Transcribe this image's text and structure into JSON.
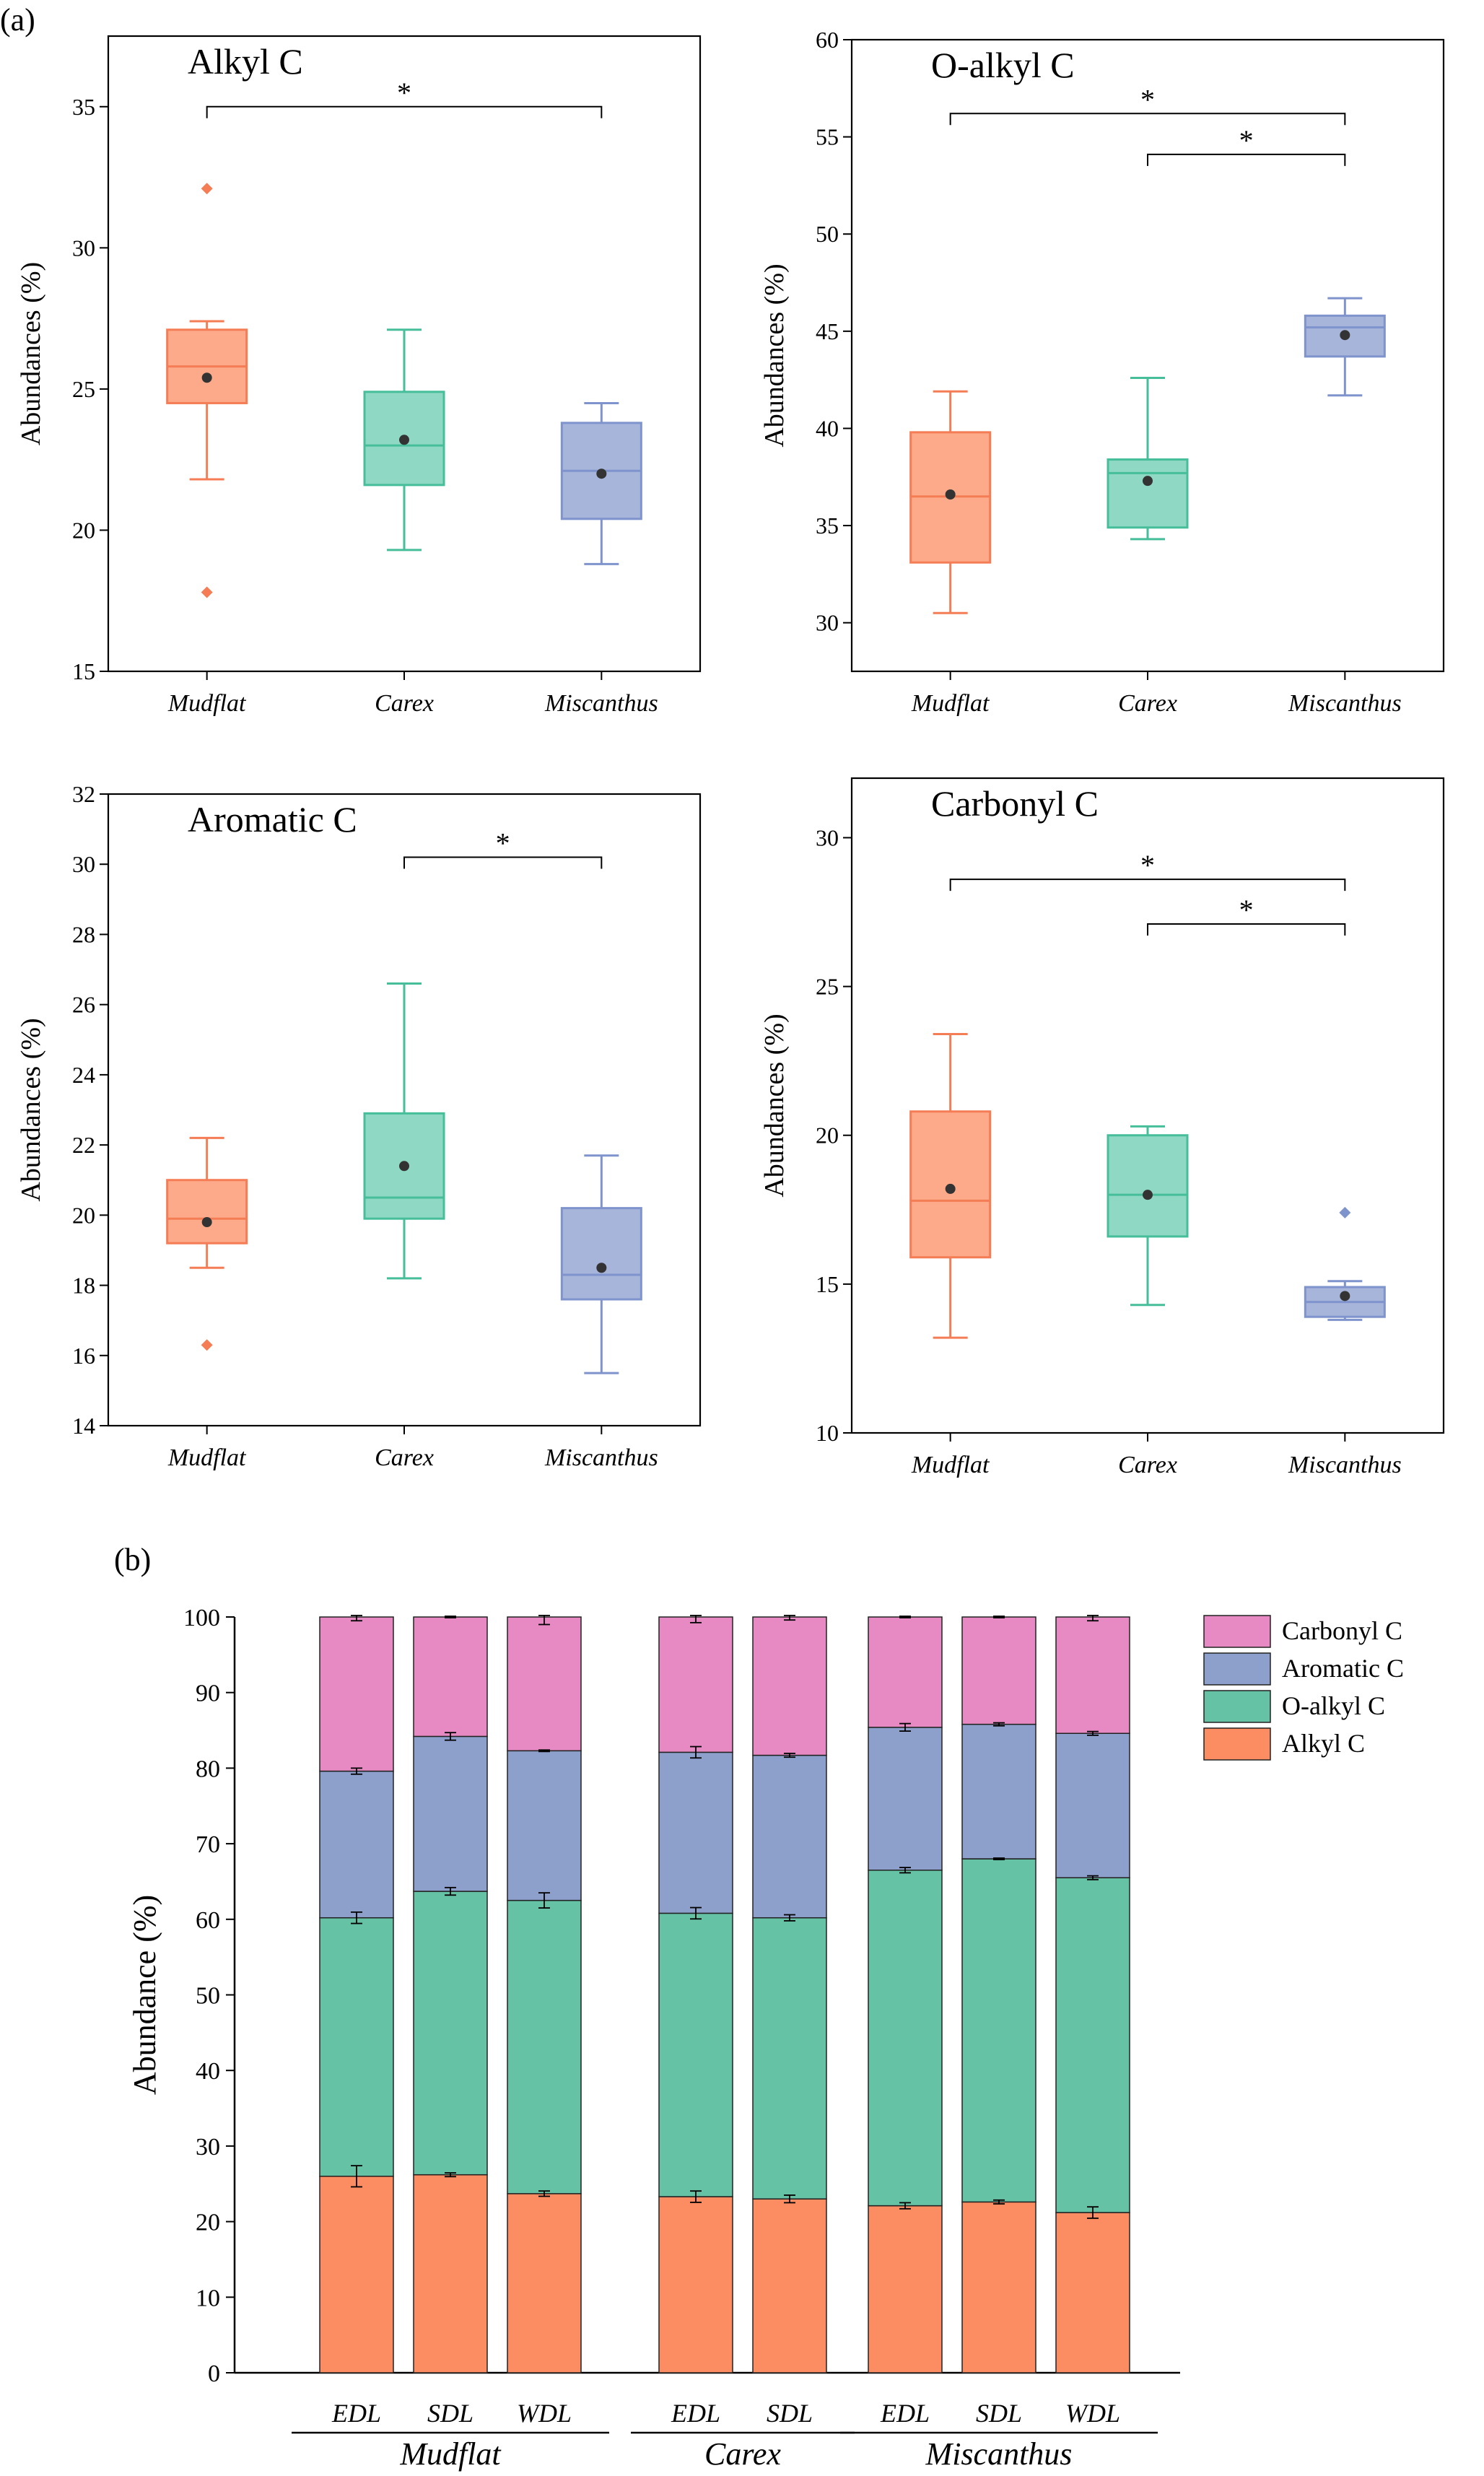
{
  "panel_labels": [
    "(a)",
    "(b)"
  ],
  "colors": {
    "Mudflat": {
      "fill": "#fcaa8a",
      "stroke": "#f47d55"
    },
    "Carex": {
      "fill": "#8fd8c3",
      "stroke": "#46be99"
    },
    "Miscanthus": {
      "fill": "#a7b5db",
      "stroke": "#7f93cc"
    },
    "mean_marker": "#333333",
    "Alkyl C": "#fc8d62",
    "O-alkyl C": "#66c2a5",
    "Aromatic C": "#8da0cb",
    "Carbonyl C": "#e78ac3"
  },
  "chart_data": [
    {
      "type": "box",
      "panel": "(a)",
      "title": "Alkyl C",
      "ylabel": "Abundances (%)",
      "ylim": [
        15,
        37.5
      ],
      "yticks": [
        15,
        20,
        25,
        30,
        35
      ],
      "categories": [
        "Mudflat",
        "Carex",
        "Miscanthus"
      ],
      "boxes": [
        {
          "category": "Mudflat",
          "whisker_low": 21.8,
          "q1": 24.5,
          "median": 25.8,
          "q3": 27.1,
          "whisker_high": 27.4,
          "mean": 25.4,
          "outliers": [
            32.1,
            17.8
          ]
        },
        {
          "category": "Carex",
          "whisker_low": 19.3,
          "q1": 21.6,
          "median": 23.0,
          "q3": 24.9,
          "whisker_high": 27.1,
          "mean": 23.2,
          "outliers": []
        },
        {
          "category": "Miscanthus",
          "whisker_low": 18.8,
          "q1": 20.4,
          "median": 22.1,
          "q3": 23.8,
          "whisker_high": 24.5,
          "mean": 22.0,
          "outliers": []
        }
      ],
      "significance": [
        {
          "from": "Mudflat",
          "to": "Miscanthus",
          "level": 35.0,
          "label": "*"
        }
      ]
    },
    {
      "type": "box",
      "panel": "(a)",
      "title": "O-alkyl C",
      "ylabel": "Abundances (%)",
      "ylim": [
        27.5,
        60
      ],
      "yticks": [
        30,
        35,
        40,
        45,
        50,
        55,
        60
      ],
      "categories": [
        "Mudflat",
        "Carex",
        "Miscanthus"
      ],
      "boxes": [
        {
          "category": "Mudflat",
          "whisker_low": 30.5,
          "q1": 33.1,
          "median": 36.5,
          "q3": 39.8,
          "whisker_high": 41.9,
          "mean": 36.6,
          "outliers": []
        },
        {
          "category": "Carex",
          "whisker_low": 34.3,
          "q1": 34.9,
          "median": 37.7,
          "q3": 38.4,
          "whisker_high": 42.6,
          "mean": 37.3,
          "outliers": []
        },
        {
          "category": "Miscanthus",
          "whisker_low": 41.7,
          "q1": 43.7,
          "median": 45.2,
          "q3": 45.8,
          "whisker_high": 46.7,
          "mean": 44.8,
          "outliers": []
        }
      ],
      "significance": [
        {
          "from": "Mudflat",
          "to": "Miscanthus",
          "level": 56.2,
          "label": "*"
        },
        {
          "from": "Carex",
          "to": "Miscanthus",
          "level": 54.1,
          "label": "*"
        }
      ]
    },
    {
      "type": "box",
      "panel": "(a)",
      "title": "Aromatic C",
      "ylabel": "Abundances (%)",
      "ylim": [
        14,
        32
      ],
      "yticks": [
        14,
        16,
        18,
        20,
        22,
        24,
        26,
        28,
        30,
        32
      ],
      "categories": [
        "Mudflat",
        "Carex",
        "Miscanthus"
      ],
      "boxes": [
        {
          "category": "Mudflat",
          "whisker_low": 18.5,
          "q1": 19.2,
          "median": 19.9,
          "q3": 21.0,
          "whisker_high": 22.2,
          "mean": 19.8,
          "outliers": [
            16.3
          ]
        },
        {
          "category": "Carex",
          "whisker_low": 18.2,
          "q1": 19.9,
          "median": 20.5,
          "q3": 22.9,
          "whisker_high": 26.6,
          "mean": 21.4,
          "outliers": []
        },
        {
          "category": "Miscanthus",
          "whisker_low": 15.5,
          "q1": 17.6,
          "median": 18.3,
          "q3": 20.2,
          "whisker_high": 21.7,
          "mean": 18.5,
          "outliers": []
        }
      ],
      "significance": [
        {
          "from": "Carex",
          "to": "Miscanthus",
          "level": 30.2,
          "label": "*"
        }
      ]
    },
    {
      "type": "box",
      "panel": "(a)",
      "title": "Carbonyl C",
      "ylabel": "Abundances (%)",
      "ylim": [
        10,
        32
      ],
      "yticks": [
        10,
        15,
        20,
        25,
        30
      ],
      "categories": [
        "Mudflat",
        "Carex",
        "Miscanthus"
      ],
      "boxes": [
        {
          "category": "Mudflat",
          "whisker_low": 13.2,
          "q1": 15.9,
          "median": 17.8,
          "q3": 20.8,
          "whisker_high": 23.4,
          "mean": 18.2,
          "outliers": []
        },
        {
          "category": "Carex",
          "whisker_low": 14.3,
          "q1": 16.6,
          "median": 18.0,
          "q3": 20.0,
          "whisker_high": 20.3,
          "mean": 18.0,
          "outliers": []
        },
        {
          "category": "Miscanthus",
          "whisker_low": 13.8,
          "q1": 13.9,
          "median": 14.4,
          "q3": 14.9,
          "whisker_high": 15.1,
          "mean": 14.6,
          "outliers": [
            17.4
          ]
        }
      ],
      "significance": [
        {
          "from": "Mudflat",
          "to": "Miscanthus",
          "level": 28.6,
          "label": "*"
        },
        {
          "from": "Carex",
          "to": "Miscanthus",
          "level": 27.1,
          "label": "*"
        }
      ]
    },
    {
      "type": "bar",
      "stacked": true,
      "panel": "(b)",
      "ylabel": "Abundance (%)",
      "ylim": [
        0,
        100
      ],
      "yticks": [
        0,
        10,
        20,
        30,
        40,
        50,
        60,
        70,
        80,
        90,
        100
      ],
      "groups": [
        {
          "name": "Mudflat",
          "categories": [
            "EDL",
            "SDL",
            "WDL"
          ]
        },
        {
          "name": "Carex",
          "categories": [
            "EDL",
            "SDL"
          ]
        },
        {
          "name": "Miscanthus",
          "categories": [
            "EDL",
            "SDL",
            "WDL"
          ]
        }
      ],
      "categories": [
        "EDL",
        "SDL",
        "WDL",
        "EDL",
        "SDL",
        "EDL",
        "SDL",
        "WDL"
      ],
      "series": [
        {
          "name": "Alkyl C",
          "values": [
            26.0,
            26.2,
            23.7,
            23.3,
            23.0,
            22.1,
            22.6,
            21.2
          ],
          "errors": [
            2.8,
            0.5,
            0.7,
            1.5,
            1.0,
            0.8,
            0.5,
            1.5
          ]
        },
        {
          "name": "O-alkyl C",
          "values": [
            34.2,
            37.5,
            38.8,
            37.5,
            37.2,
            44.4,
            45.4,
            44.3
          ],
          "errors": [
            1.5,
            1.0,
            2.0,
            1.5,
            0.8,
            0.7,
            0.2,
            0.5
          ]
        },
        {
          "name": "Aromatic C",
          "values": [
            19.4,
            20.5,
            19.8,
            21.3,
            21.5,
            18.9,
            17.8,
            19.1
          ],
          "errors": [
            0.8,
            1.0,
            0.2,
            1.5,
            0.5,
            1.0,
            0.4,
            0.5
          ]
        },
        {
          "name": "Carbonyl C",
          "values": [
            20.4,
            15.8,
            17.7,
            17.9,
            18.3,
            14.6,
            14.2,
            15.4
          ],
          "errors": [
            1.0,
            0.2,
            2.0,
            1.5,
            0.8,
            0.2,
            0.2,
            1.0
          ]
        }
      ],
      "legend": [
        "Carbonyl C",
        "Aromatic C",
        "O-alkyl C",
        "Alkyl C"
      ],
      "legend_position": "top-right"
    }
  ]
}
